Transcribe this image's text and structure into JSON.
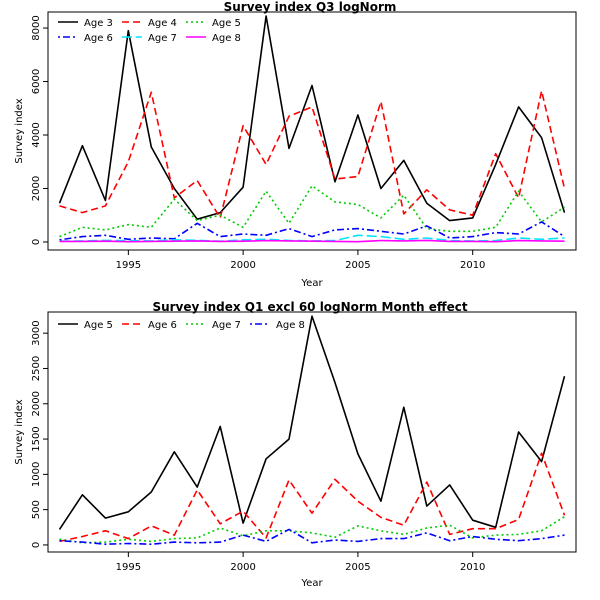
{
  "chart_data": [
    {
      "type": "line",
      "title": "Survey index Q3 logNorm",
      "xlabel": "Year",
      "ylabel": "Survey index",
      "xlim": [
        1991.5,
        2014.5
      ],
      "ylim": [
        -300,
        8600
      ],
      "xticks": [
        1995,
        2000,
        2005,
        2010
      ],
      "yticks": [
        0,
        2000,
        4000,
        6000,
        8000
      ],
      "legend_position": "top-left",
      "legend_columns": 3,
      "x": [
        1992,
        1993,
        1994,
        1995,
        1996,
        1997,
        1998,
        1999,
        2000,
        2001,
        2002,
        2003,
        2004,
        2005,
        2006,
        2007,
        2008,
        2009,
        2010,
        2011,
        2012,
        2013,
        2014
      ],
      "series": [
        {
          "name": "Age 3",
          "color": "#000000",
          "dash": "solid",
          "values": [
            1450,
            3600,
            1550,
            7900,
            3550,
            2000,
            850,
            1100,
            2050,
            8450,
            3500,
            5850,
            2250,
            4750,
            2000,
            3050,
            1450,
            800,
            900,
            2900,
            5050,
            3900,
            1100
          ]
        },
        {
          "name": "Age 4",
          "color": "#ff0000",
          "dash": "dashed",
          "values": [
            1350,
            1100,
            1350,
            3000,
            5600,
            1650,
            2300,
            900,
            4350,
            2900,
            4700,
            5050,
            2350,
            2450,
            5250,
            1050,
            1950,
            1200,
            1000,
            3300,
            1650,
            5650,
            2000
          ]
        },
        {
          "name": "Age 5",
          "color": "#00cc00",
          "dash": "dotted",
          "values": [
            200,
            550,
            450,
            650,
            550,
            1600,
            800,
            1000,
            550,
            1900,
            700,
            2100,
            1500,
            1400,
            900,
            1750,
            500,
            400,
            400,
            550,
            1900,
            750,
            1300
          ]
        },
        {
          "name": "Age 6",
          "color": "#0000ff",
          "dash": "dotdash",
          "values": [
            80,
            200,
            250,
            100,
            150,
            120,
            700,
            200,
            300,
            250,
            500,
            200,
            450,
            500,
            400,
            300,
            600,
            150,
            200,
            350,
            300,
            750,
            200
          ]
        },
        {
          "name": "Age 7",
          "color": "#00e5ff",
          "dash": "longdash",
          "values": [
            30,
            40,
            60,
            50,
            40,
            80,
            60,
            30,
            80,
            100,
            60,
            40,
            50,
            250,
            200,
            100,
            150,
            50,
            40,
            50,
            150,
            100,
            150
          ]
        },
        {
          "name": "Age 8",
          "color": "#ff00ff",
          "dash": "solid",
          "values": [
            20,
            20,
            30,
            10,
            20,
            30,
            40,
            20,
            30,
            50,
            40,
            30,
            20,
            10,
            50,
            40,
            60,
            20,
            20,
            10,
            50,
            40,
            30
          ]
        }
      ]
    },
    {
      "type": "line",
      "title": "Survey index Q1 excl 60 logNorm Month effect",
      "xlabel": "Year",
      "ylabel": "Survey index",
      "xlim": [
        1991.5,
        2014.5
      ],
      "ylim": [
        -100,
        3300
      ],
      "xticks": [
        1995,
        2000,
        2005,
        2010
      ],
      "yticks": [
        0,
        500,
        1000,
        1500,
        2000,
        2500,
        3000
      ],
      "legend_position": "top-left",
      "legend_columns": 4,
      "x": [
        1992,
        1993,
        1994,
        1995,
        1996,
        1997,
        1998,
        1999,
        2000,
        2001,
        2002,
        2003,
        2004,
        2005,
        2006,
        2007,
        2008,
        2009,
        2010,
        2011,
        2012,
        2013,
        2014
      ],
      "series": [
        {
          "name": "Age 5",
          "color": "#000000",
          "dash": "solid",
          "values": [
            220,
            710,
            380,
            470,
            750,
            1320,
            820,
            1680,
            310,
            1220,
            1500,
            3240,
            2300,
            1290,
            620,
            1950,
            550,
            850,
            350,
            250,
            1600,
            1180,
            2390
          ]
        },
        {
          "name": "Age 6",
          "color": "#ff0000",
          "dash": "dashed",
          "values": [
            50,
            120,
            200,
            90,
            270,
            140,
            780,
            300,
            480,
            100,
            920,
            450,
            930,
            620,
            390,
            280,
            890,
            150,
            230,
            230,
            360,
            1300,
            420
          ]
        },
        {
          "name": "Age 7",
          "color": "#00cc00",
          "dash": "dotted",
          "values": [
            80,
            30,
            40,
            80,
            50,
            90,
            100,
            240,
            130,
            200,
            200,
            170,
            110,
            270,
            200,
            150,
            240,
            280,
            100,
            140,
            150,
            200,
            400
          ]
        },
        {
          "name": "Age 8",
          "color": "#0000ff",
          "dash": "dotdash",
          "values": [
            60,
            40,
            10,
            20,
            10,
            40,
            30,
            40,
            140,
            50,
            220,
            30,
            70,
            50,
            90,
            90,
            170,
            60,
            120,
            80,
            60,
            90,
            140
          ]
        }
      ]
    }
  ]
}
